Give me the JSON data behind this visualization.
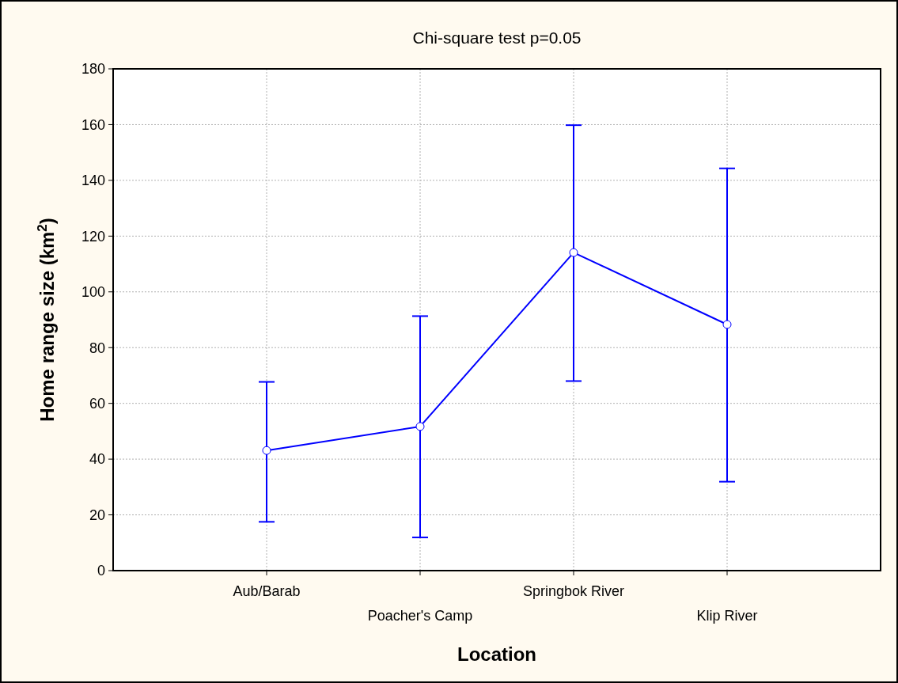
{
  "chart_data": {
    "type": "line",
    "title": "Chi-square test p=0.05",
    "xlabel": "Location",
    "ylabel": "Home range size (km$^{2}$)",
    "categories": [
      "Aub/Barab",
      "Poacher's Camp",
      "Springbok River",
      "Klip River"
    ],
    "series": [
      {
        "color": "#0000ff",
        "values": [
          43.1,
          51.7,
          114.1,
          88.3
        ],
        "errors": [
          [
            17.5,
            67.7
          ],
          [
            11.9,
            91.3
          ],
          [
            68.0,
            159.8
          ],
          [
            31.9,
            144.3
          ]
        ]
      }
    ],
    "ylim": [
      0,
      180
    ],
    "yticks": [
      0,
      20,
      40,
      60,
      80,
      100,
      120,
      140,
      160,
      180
    ],
    "grid": true,
    "marker": "circle",
    "line_style": "solid"
  }
}
